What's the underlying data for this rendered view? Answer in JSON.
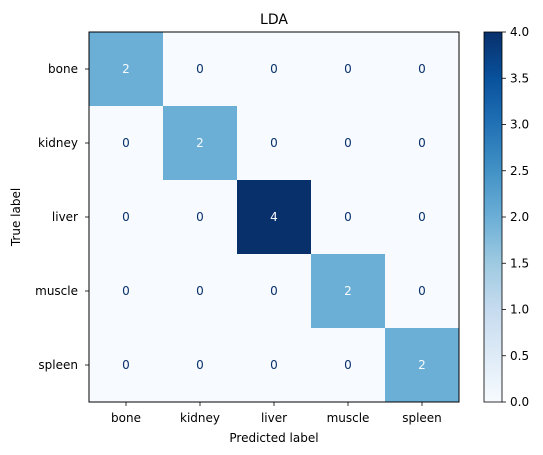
{
  "chart_data": {
    "type": "heatmap",
    "title": "LDA",
    "xlabel": "Predicted label",
    "ylabel": "True label",
    "x_categories": [
      "bone",
      "kidney",
      "liver",
      "muscle",
      "spleen"
    ],
    "y_categories": [
      "bone",
      "kidney",
      "liver",
      "muscle",
      "spleen"
    ],
    "values": [
      [
        2,
        0,
        0,
        0,
        0
      ],
      [
        0,
        2,
        0,
        0,
        0
      ],
      [
        0,
        0,
        4,
        0,
        0
      ],
      [
        0,
        0,
        0,
        2,
        0
      ],
      [
        0,
        0,
        0,
        0,
        2
      ]
    ],
    "colorbar": {
      "min": 0.0,
      "max": 4.0,
      "ticks": [
        "0.0",
        "0.5",
        "1.0",
        "1.5",
        "2.0",
        "2.5",
        "3.0",
        "3.5",
        "4.0"
      ],
      "colormap": "Blues"
    },
    "colors": {
      "low": "#f7fbff",
      "mid": "#6baed6",
      "high": "#08306b",
      "text_on_light": "#08306b",
      "text_on_dark": "#f7fbff"
    }
  }
}
